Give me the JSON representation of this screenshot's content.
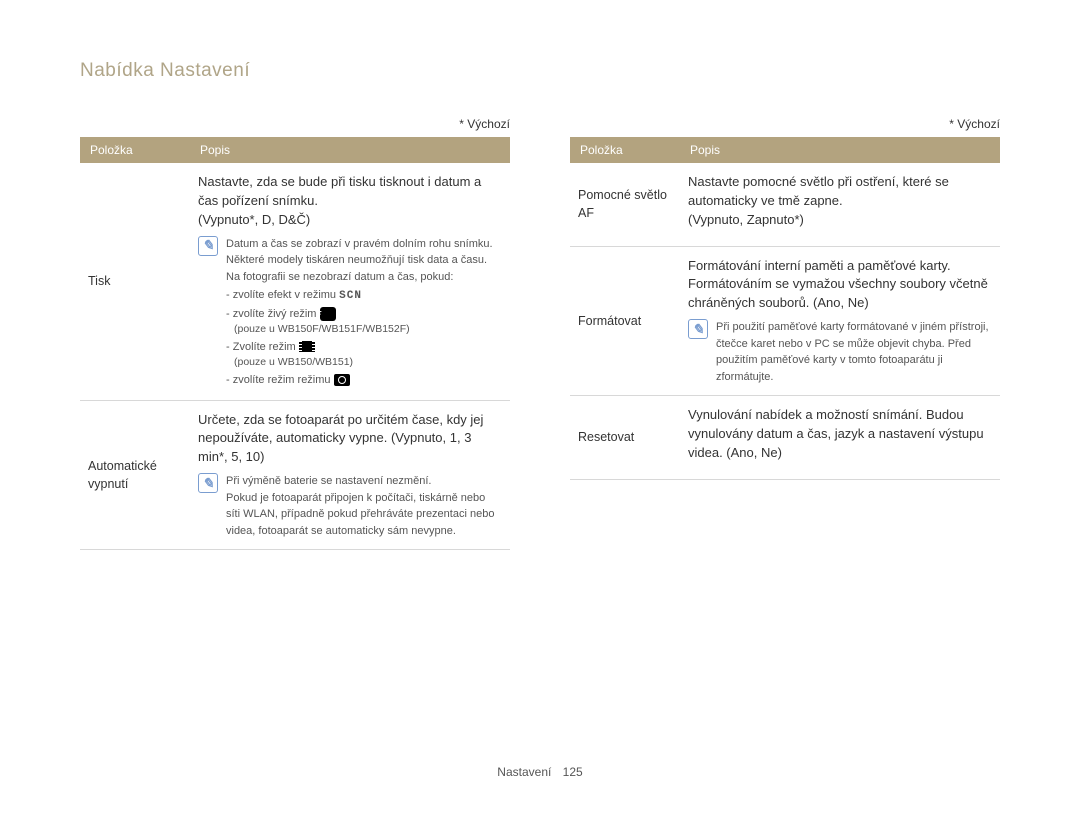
{
  "page": {
    "title": "Nabídka Nastavení",
    "footer_label": "Nastavení",
    "page_number": "125"
  },
  "default_note": "* Výchozí",
  "table_headers": {
    "k": "Položka",
    "i": "Popis"
  },
  "left": {
    "rows": [
      {
        "label": "Tisk",
        "desc": "Nastavte, zda se bude při tisku tisknout i datum a čas pořízení snímku.",
        "options": "(Vypnuto*, D, D&Č)",
        "notes": [
          "Datum a čas se zobrazí v pravém dolním rohu snímku.",
          "Některé modely tiskáren neumožňují tisk data a času.",
          "Na fotografii se nezobrazí datum a čas, pokud:"
        ],
        "sublist": [
          {
            "t": "zvolíte efekt v režimu",
            "suffix_type": "scn"
          },
          {
            "t": "zvolíte živý režim",
            "suffix_type": "star",
            "sub": "(pouze u WB150F/WB151F/WB152F)"
          },
          {
            "t": "Zvolíte režim",
            "suffix_type": "film",
            "sub": "(pouze u WB150/WB151)"
          },
          {
            "t": "zvolíte režim režimu",
            "suffix_type": "cam"
          }
        ]
      },
      {
        "label": "Automatické vypnutí",
        "desc": "Určete, zda se fotoaparát po určitém čase, kdy jej nepoužíváte, automaticky vypne.",
        "options": "(Vypnuto, 1, 3 min*, 5, 10)",
        "notes": [
          "Při výměně baterie se nastavení nezmění.",
          "Pokud je fotoaparát připojen k počítači, tiskárně nebo síti WLAN, případně pokud přehráváte prezentaci nebo videa, fotoaparát se automaticky sám nevypne."
        ]
      }
    ]
  },
  "right": {
    "rows": [
      {
        "label": "Pomocné světlo AF",
        "desc": "Nastavte pomocné světlo při ostření, které se automaticky ve tmě zapne.",
        "options": "(Vypnuto, Zapnuto*)"
      },
      {
        "label": "Formátovat",
        "desc": "Formátování interní paměti a paměťové karty. Formátováním se vymažou všechny soubory včetně chráněných souborů. (Ano, Ne)",
        "notes": [
          "Při použití paměťové karty formátované v jiném přístroji, čtečce karet nebo v PC se může objevit chyba. Před použitím paměťové karty v tomto fotoaparátu ji zformátujte."
        ]
      },
      {
        "label": "Resetovat",
        "desc": "Vynulování nabídek a možností snímání. Budou vynulovány datum a čas, jazyk a nastavení výstupu videa. (Ano, Ne)"
      }
    ]
  }
}
